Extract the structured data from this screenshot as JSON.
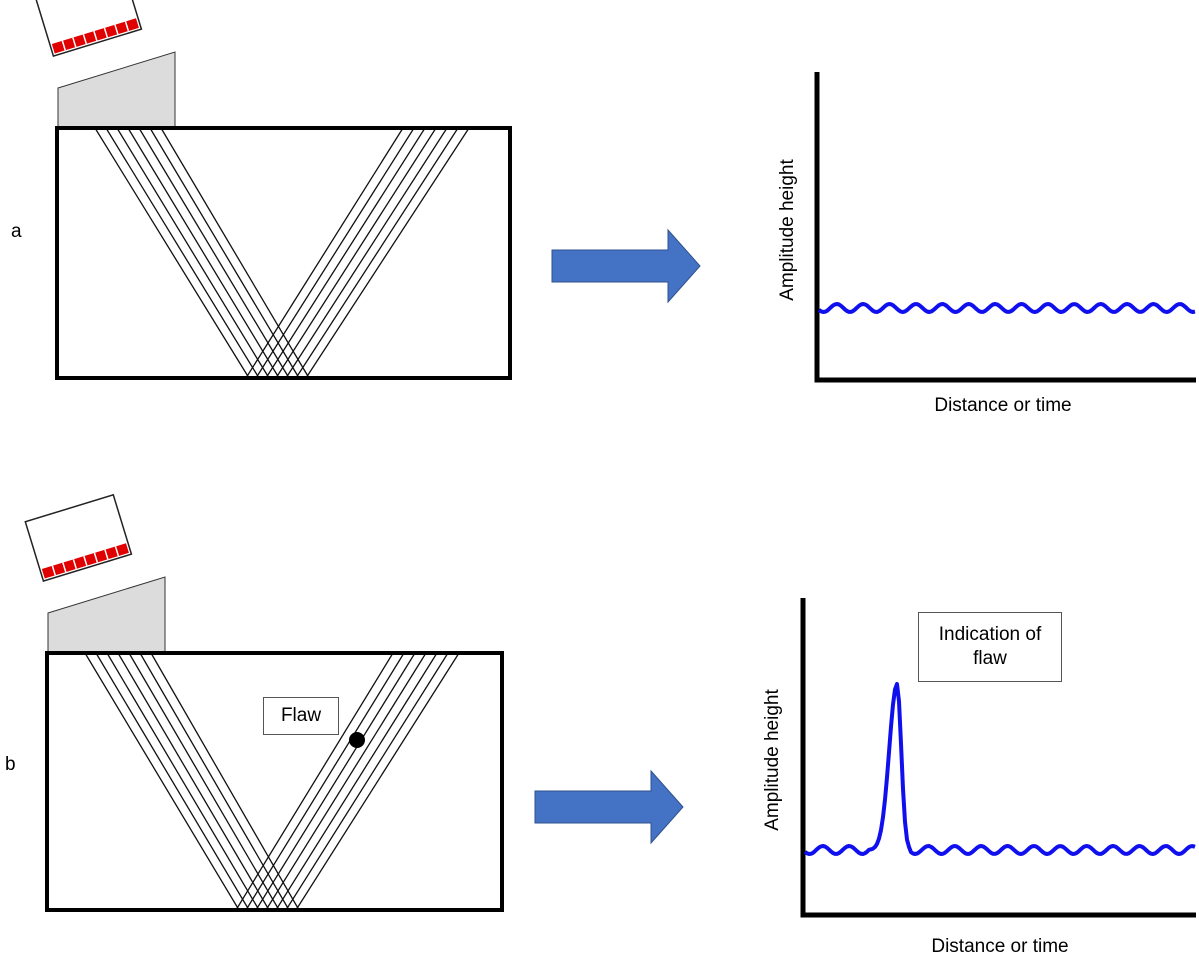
{
  "panels": [
    {
      "label": "a",
      "y_axis_label": "Amplitude height",
      "x_axis_label": "Distance or time"
    },
    {
      "label": "b",
      "flaw_label": "Flaw",
      "indication_label": "Indication of flaw",
      "y_axis_label": "Amplitude height",
      "x_axis_label": "Distance or time"
    }
  ]
}
